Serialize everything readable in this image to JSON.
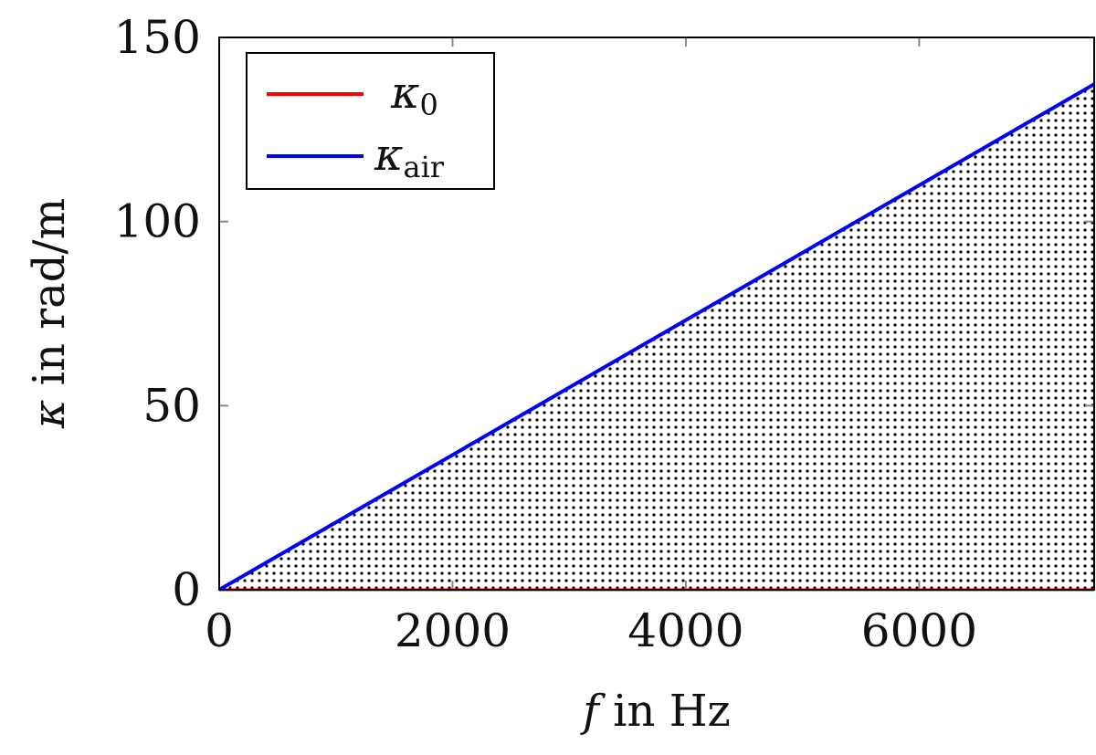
{
  "chart_data": {
    "type": "line",
    "xlabel": {
      "var": "f",
      "rest": " in Hz"
    },
    "ylabel": {
      "var": "κ",
      "rest": " in rad/m"
    },
    "xlim": [
      0,
      7500
    ],
    "ylim": [
      0,
      150
    ],
    "xticks": [
      "0",
      "2000",
      "4000",
      "6000"
    ],
    "yticks": [
      "0",
      "50",
      "100",
      "150"
    ],
    "xtick_values": [
      0,
      2000,
      4000,
      6000
    ],
    "ytick_values": [
      0,
      50,
      100,
      150
    ],
    "legend_position": "top-left",
    "series": [
      {
        "name": {
          "base": "κ",
          "sub": "0"
        },
        "color": "#ff0000",
        "x": [
          0,
          7500
        ],
        "y": [
          0,
          0
        ]
      },
      {
        "name": {
          "base": "κ",
          "sub": "air"
        },
        "color": "#0000ff",
        "x": [
          0,
          7500
        ],
        "y": [
          0,
          137.3
        ]
      }
    ],
    "shaded_region": {
      "between": [
        "κ_0",
        "κ_air"
      ],
      "pattern": "dots",
      "color": "#000000"
    }
  }
}
